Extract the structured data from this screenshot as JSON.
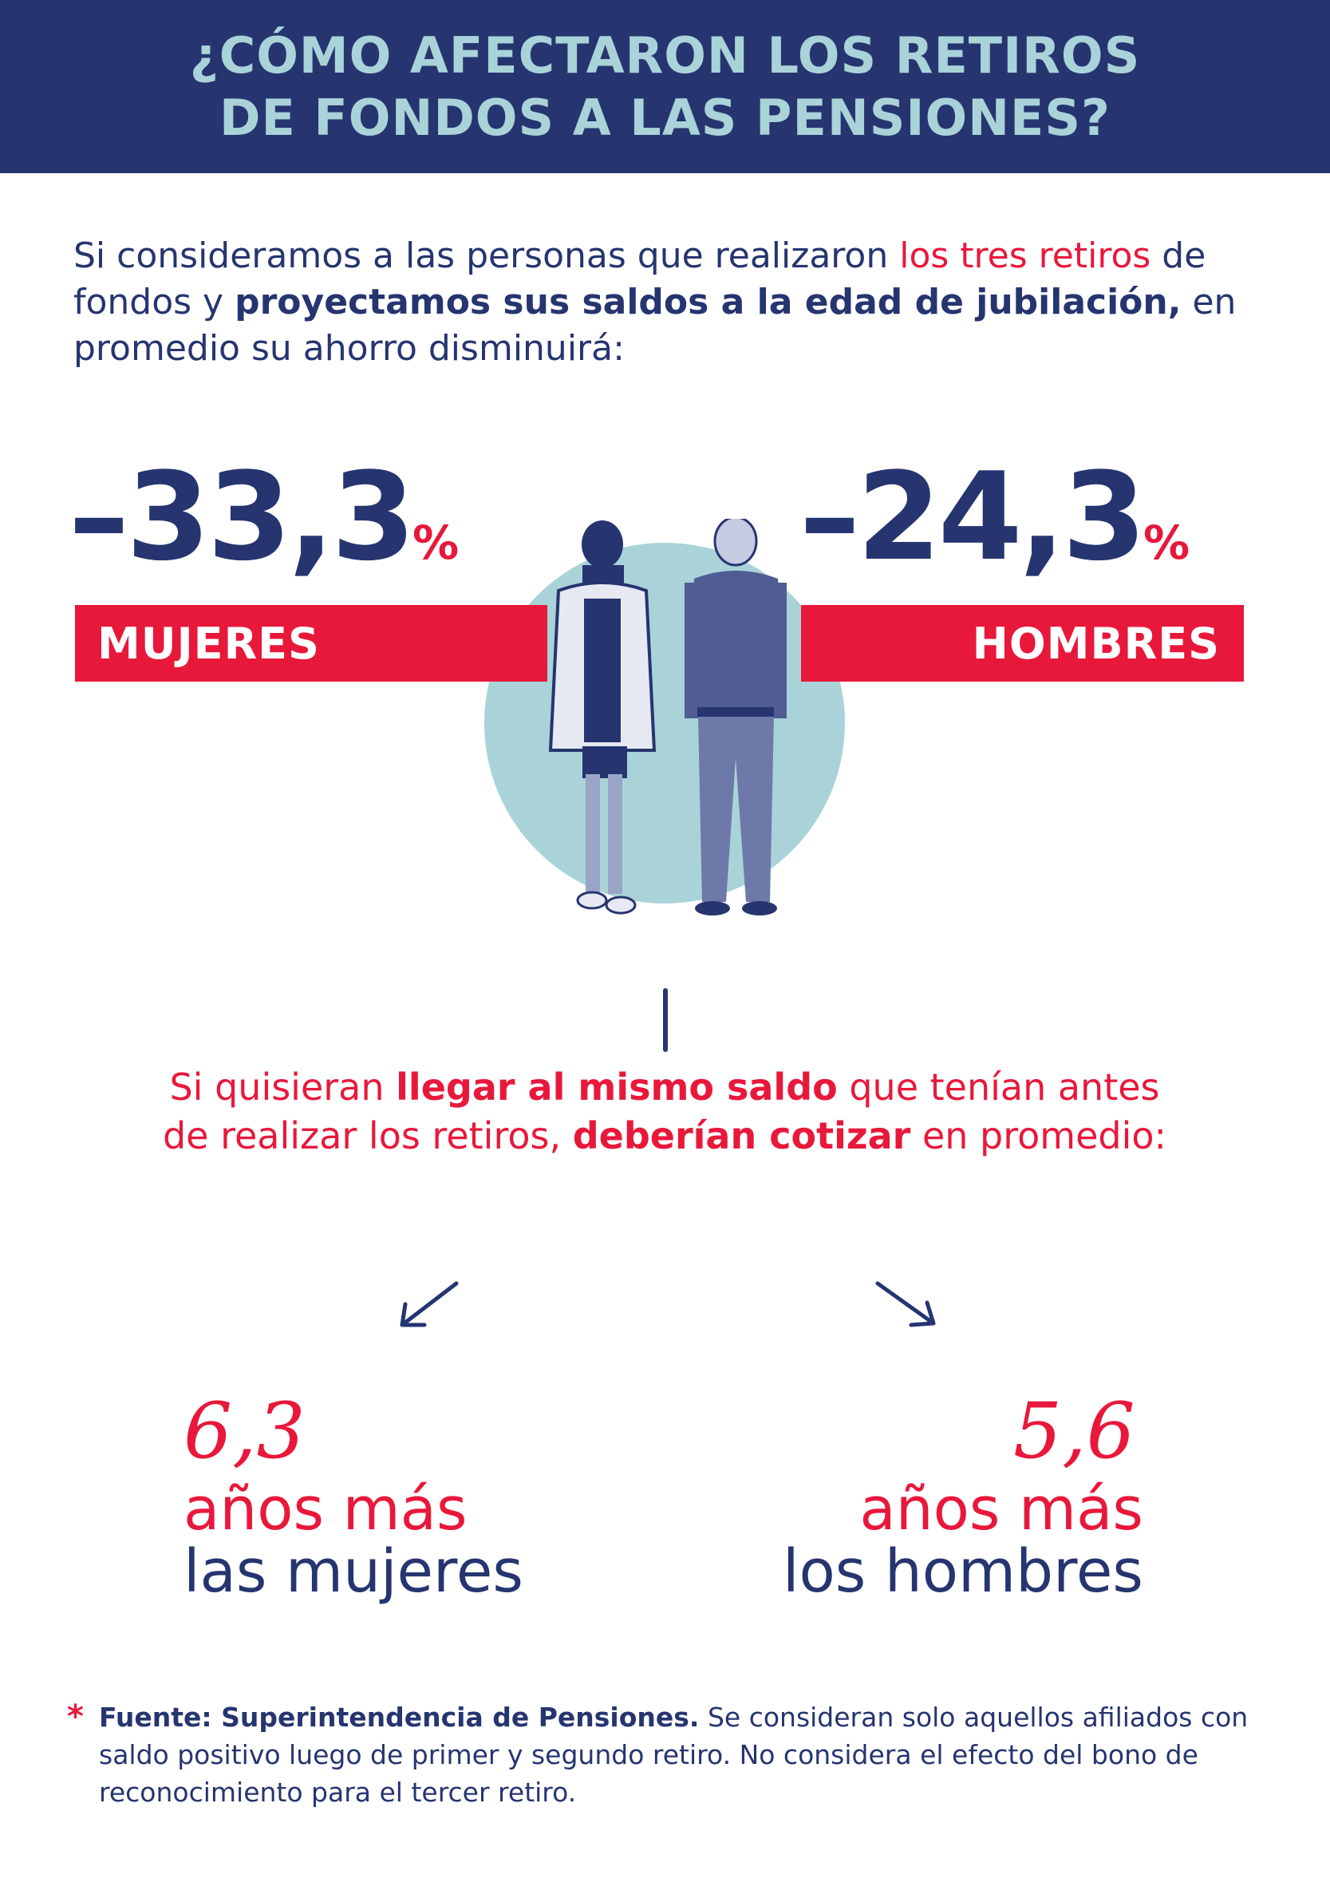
{
  "colors": {
    "navy": "#263570",
    "red": "#e8183b",
    "teal": "#a9d3d8"
  },
  "header": {
    "line1": "¿CÓMO AFECTARON LOS RETIROS",
    "line2": "DE FONDOS A LAS PENSIONES?"
  },
  "intro": {
    "part1": "Si consideramos a las personas que realizaron ",
    "red": "los tres retiros",
    "part2": " de fondos y ",
    "bold": "proyectamos sus saldos a la edad de jubilación,",
    "part3": " en promedio su ahorro disminuirá:"
  },
  "women": {
    "value": "–33,3",
    "pct": "%",
    "label": "MUJERES",
    "years": "6,3",
    "line1": "años más",
    "line2": "las mujeres"
  },
  "men": {
    "value": "–24,3",
    "pct": "%",
    "label": "HOMBRES",
    "years": "5,6",
    "line1": "años más",
    "line2": "los hombres"
  },
  "middle": {
    "part1": "Si quisieran ",
    "bold1": "llegar al mismo saldo",
    "part2": " que tenían antes de realizar los retiros, ",
    "bold2": "deberían cotizar",
    "part3": " en promedio:"
  },
  "footnote": {
    "star": "*",
    "bold": "Fuente: Superintendencia de Pensiones.",
    "text": " Se consideran solo aquellos afiliados con saldo positivo luego de primer y segundo retiro. No considera el efecto del bono de reconocimiento para el tercer retiro."
  },
  "icons": [
    "arrow-down-left-icon",
    "arrow-down-right-icon"
  ]
}
